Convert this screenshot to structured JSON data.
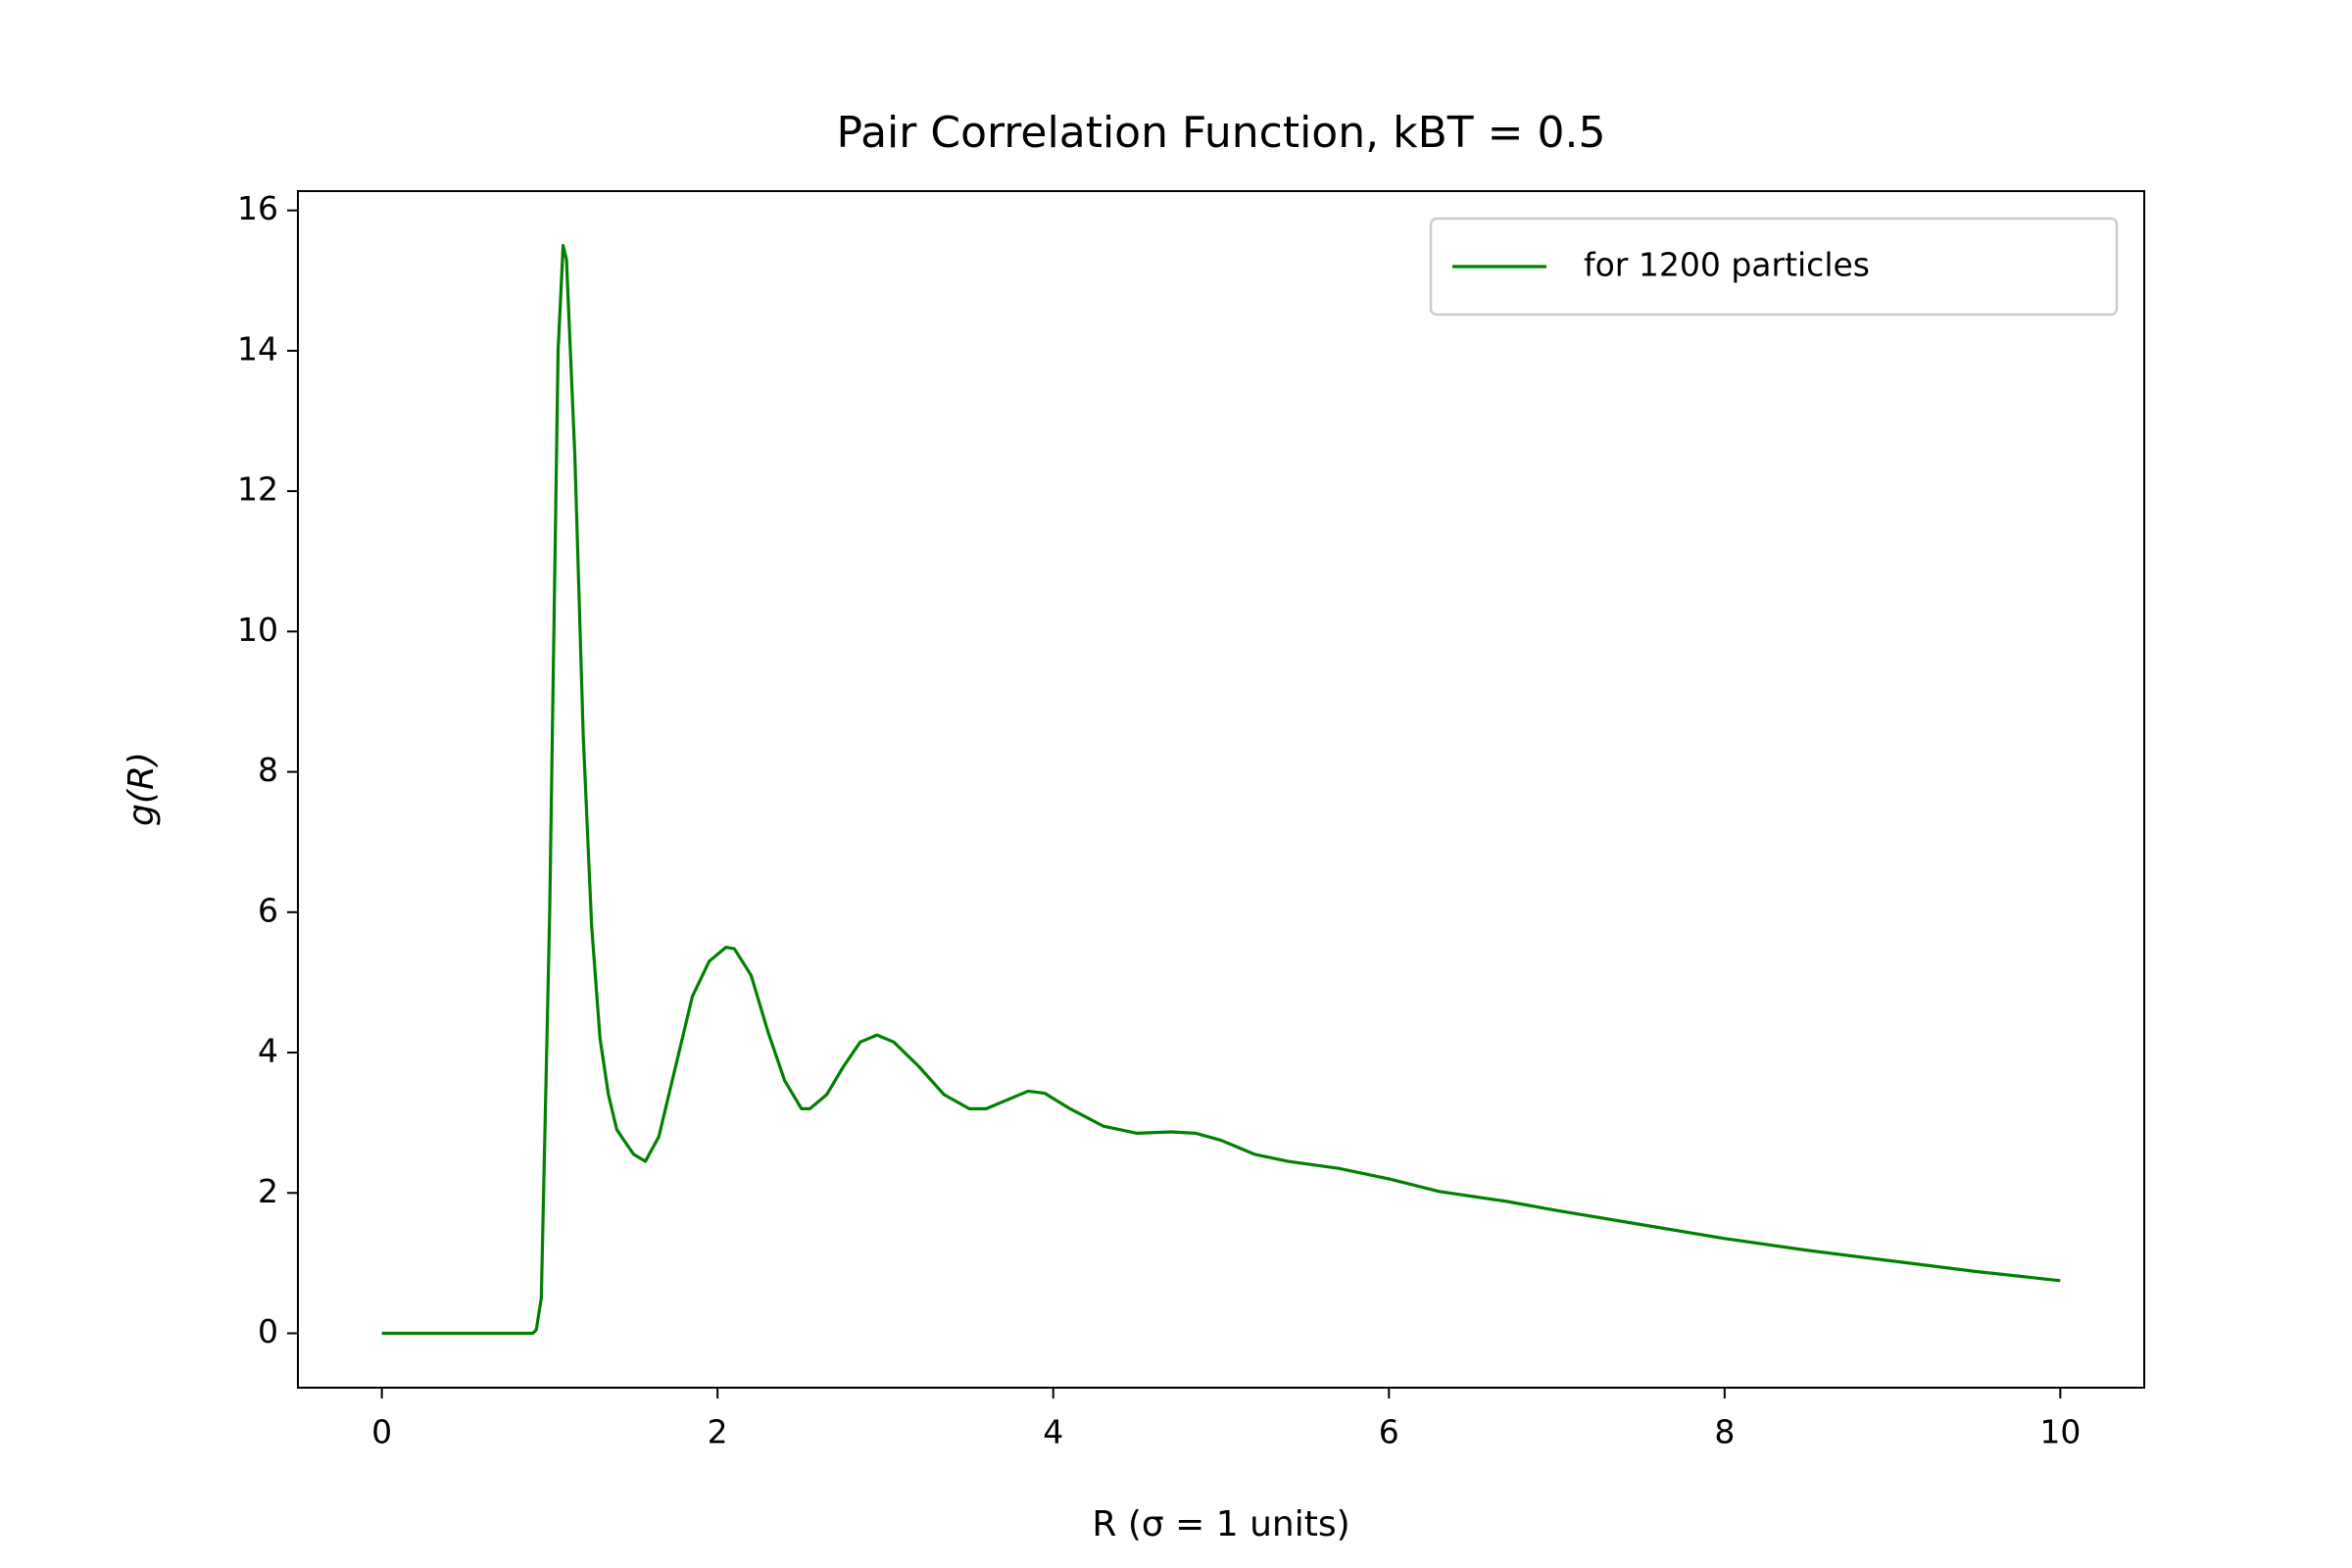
{
  "chart_data": {
    "type": "line",
    "title": "Pair Correlation Function, kBT = 0.5",
    "x_label": "R (σ = 1 units)",
    "y_label": "g(R)",
    "xlim": [
      -0.5,
      10.5
    ],
    "xticks": [
      0,
      2,
      4,
      6,
      8,
      10
    ],
    "ylim": [
      -0.775,
      16.275
    ],
    "yticks": [
      0,
      2,
      4,
      6,
      8,
      10,
      12,
      14,
      16
    ],
    "grid": false,
    "legend": "upper right",
    "x": [
      0,
      0.9,
      0.92,
      0.95,
      1.0,
      1.05,
      1.08,
      1.1,
      1.15,
      1.2,
      1.25,
      1.3,
      1.35,
      1.4,
      1.5,
      1.57,
      1.65,
      1.75,
      1.85,
      1.95,
      2.05,
      2.1,
      2.2,
      2.3,
      2.4,
      2.5,
      2.55,
      2.65,
      2.75,
      2.85,
      2.95,
      3.05,
      3.2,
      3.35,
      3.5,
      3.6,
      3.7,
      3.85,
      3.95,
      4.1,
      4.3,
      4.5,
      4.7,
      4.85,
      5.0,
      5.2,
      5.4,
      5.7,
      6.0,
      6.3,
      6.7,
      7.0,
      7.5,
      8.0,
      8.5,
      9.0,
      9.5,
      10
    ],
    "series": [
      {
        "name": "for 1200 particles",
        "color": "#008000",
        "values": [
          0,
          0,
          0.05,
          0.5,
          6,
          14,
          15.5,
          15.3,
          12.5,
          8.5,
          5.8,
          4.2,
          3.4,
          2.9,
          2.55,
          2.45,
          2.8,
          3.8,
          4.8,
          5.3,
          5.5,
          5.48,
          5.1,
          4.3,
          3.6,
          3.2,
          3.2,
          3.4,
          3.8,
          4.15,
          4.25,
          4.15,
          3.8,
          3.4,
          3.2,
          3.2,
          3.3,
          3.45,
          3.42,
          3.2,
          2.95,
          2.85,
          2.87,
          2.85,
          2.75,
          2.55,
          2.45,
          2.35,
          2.2,
          2.02,
          1.88,
          1.75,
          1.55,
          1.35,
          1.18,
          1.03,
          0.88,
          0.75
        ]
      }
    ]
  }
}
